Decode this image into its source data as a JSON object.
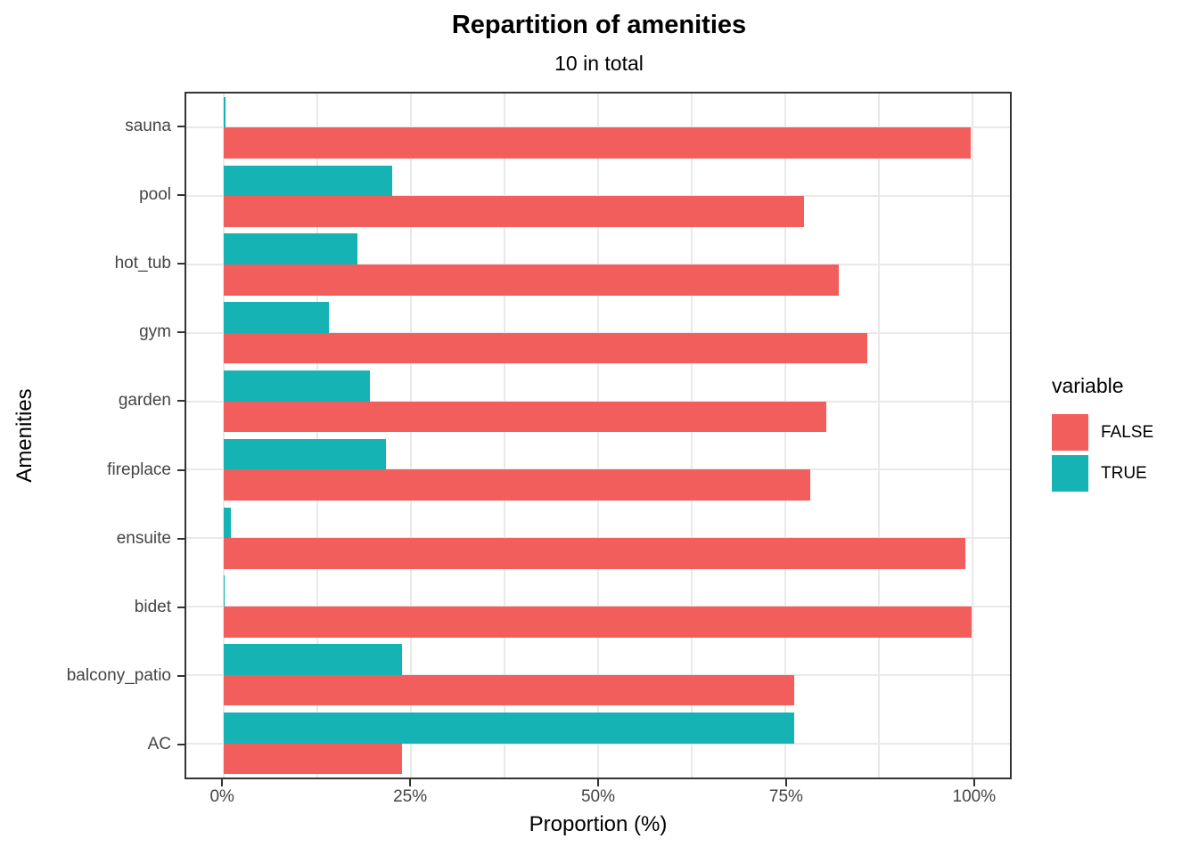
{
  "colors": {
    "false_bar": "#F25E5B",
    "true_bar": "#16B3B5",
    "grid": "#E9E9E9",
    "panel_border": "#333333",
    "tick_text": "#444444",
    "background": "#FFFFFF"
  },
  "chart_data": {
    "type": "bar",
    "orientation": "horizontal",
    "title": "Repartition of amenities",
    "subtitle": "10 in total",
    "xlabel": "Proportion (%)",
    "ylabel": "Amenities",
    "categories": [
      "sauna",
      "pool",
      "hot_tub",
      "gym",
      "garden",
      "fireplace",
      "ensuite",
      "bidet",
      "balcony_patio",
      "AC"
    ],
    "series": [
      {
        "name": "FALSE",
        "color": "#F25E5B",
        "values": [
          99.8,
          77.5,
          82.1,
          85.9,
          80.5,
          78.3,
          99.1,
          99.9,
          76.2,
          23.8
        ]
      },
      {
        "name": "TRUE",
        "color": "#16B3B5",
        "values": [
          0.2,
          22.5,
          17.9,
          14.1,
          19.5,
          21.7,
          0.9,
          0.1,
          23.8,
          76.2
        ]
      }
    ],
    "xlim": [
      0,
      100
    ],
    "x_tick_values": [
      0,
      25,
      50,
      75,
      100
    ],
    "x_tick_labels": [
      "0%",
      "25%",
      "50%",
      "75%",
      "100%"
    ],
    "x_minor_tick_values": [
      12.5,
      37.5,
      62.5,
      87.5
    ],
    "grid": true,
    "legend": {
      "title": "variable",
      "position": "right",
      "entries": [
        "FALSE",
        "TRUE"
      ]
    }
  }
}
